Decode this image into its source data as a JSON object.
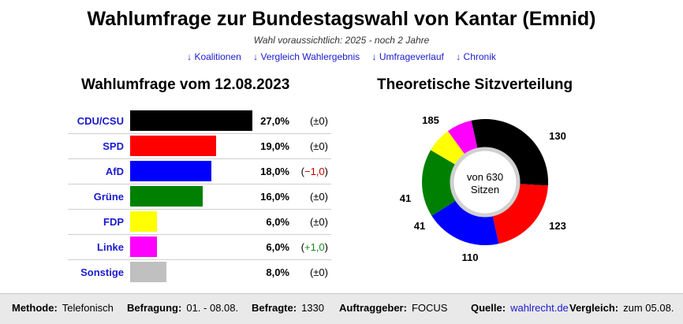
{
  "header": {
    "title": "Wahlumfrage zur Bundestagswahl von Kantar (Emnid)",
    "subtitle": "Wahl voraussichtlich: 2025 - noch 2 Jahre",
    "nav": [
      "↓ Koalitionen",
      "↓ Vergleich Wahlergebnis",
      "↓ Umfrageverlauf",
      "↓ Chronik"
    ]
  },
  "poll": {
    "heading": "Wahlumfrage vom 12.08.2023",
    "rows": [
      {
        "party": "CDU/CSU",
        "value": 27.0,
        "pct": "27,0%",
        "change": "±0",
        "change_sign": "zero",
        "color": "#000000"
      },
      {
        "party": "SPD",
        "value": 19.0,
        "pct": "19,0%",
        "change": "±0",
        "change_sign": "zero",
        "color": "#ff0000"
      },
      {
        "party": "AfD",
        "value": 18.0,
        "pct": "18,0%",
        "change": "−1,0",
        "change_sign": "neg",
        "color": "#0000ff"
      },
      {
        "party": "Grüne",
        "value": 16.0,
        "pct": "16,0%",
        "change": "±0",
        "change_sign": "zero",
        "color": "#008000"
      },
      {
        "party": "FDP",
        "value": 6.0,
        "pct": "6,0%",
        "change": "±0",
        "change_sign": "zero",
        "color": "#ffff00"
      },
      {
        "party": "Linke",
        "value": 6.0,
        "pct": "6,0%",
        "change": "+1,0",
        "change_sign": "pos",
        "color": "#ff00ff"
      },
      {
        "party": "Sonstige",
        "value": 8.0,
        "pct": "8,0%",
        "change": "±0",
        "change_sign": "zero",
        "color": "#c0c0c0"
      }
    ]
  },
  "seats": {
    "heading": "Theoretische Sitzverteilung",
    "center_line1": "von 630",
    "center_line2": "Sitzen",
    "segments": [
      {
        "party": "CDU/CSU",
        "seats": 185,
        "label": "185",
        "color": "#000000"
      },
      {
        "party": "SPD",
        "seats": 130,
        "label": "130",
        "color": "#ff0000"
      },
      {
        "party": "AfD",
        "seats": 123,
        "label": "123",
        "color": "#0000ff"
      },
      {
        "party": "Grüne",
        "seats": 110,
        "label": "110",
        "color": "#008000"
      },
      {
        "party": "FDP",
        "seats": 41,
        "label": "41",
        "color": "#ffff00"
      },
      {
        "party": "Linke",
        "seats": 41,
        "label": "41",
        "color": "#ff00ff"
      }
    ]
  },
  "footer": {
    "methode_label": "Methode:",
    "methode": "Telefonisch",
    "befragung_label": "Befragung:",
    "befragung": "01. - 08.08.",
    "befragte_label": "Befragte:",
    "befragte": "1330",
    "auftraggeber_label": "Auftraggeber:",
    "auftraggeber": "FOCUS",
    "quelle_label": "Quelle:",
    "quelle": "wahlrecht.de",
    "vergleich_label": "Vergleich:",
    "vergleich": "zum 05.08."
  },
  "chart_data": [
    {
      "type": "bar",
      "title": "Wahlumfrage vom 12.08.2023",
      "categories": [
        "CDU/CSU",
        "SPD",
        "AfD",
        "Grüne",
        "FDP",
        "Linke",
        "Sonstige"
      ],
      "values": [
        27.0,
        19.0,
        18.0,
        16.0,
        6.0,
        6.0,
        8.0
      ],
      "changes": [
        0,
        0,
        -1.0,
        0,
        0,
        1.0,
        0
      ]
    },
    {
      "type": "pie",
      "title": "Theoretische Sitzverteilung",
      "categories": [
        "CDU/CSU",
        "SPD",
        "AfD",
        "Grüne",
        "FDP",
        "Linke"
      ],
      "values": [
        185,
        130,
        123,
        110,
        41,
        41
      ],
      "total": 630
    }
  ]
}
